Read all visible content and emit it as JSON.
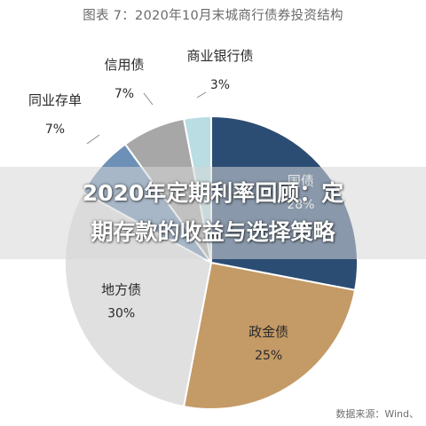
{
  "chart_data": {
    "type": "pie",
    "title": "图表 7：2020年10月末城商行债券投资结构",
    "categories": [
      "国债",
      "政金债",
      "地方债",
      "同业存单",
      "信用债",
      "商业银行债"
    ],
    "values": [
      28,
      25,
      30,
      7,
      7,
      3
    ],
    "value_labels": [
      "28%",
      "25%",
      "30%",
      "7%",
      "7%",
      "3%"
    ],
    "colors": [
      "#2c4d73",
      "#c49a66",
      "#e0e0e0",
      "#6d90b6",
      "#a7a7a7",
      "#b9dde3"
    ],
    "source": "数据来源：Wind、"
  },
  "overlay": {
    "line1": "2020年定期利率回顾：定",
    "line2": "期存款的收益与选择策略"
  }
}
